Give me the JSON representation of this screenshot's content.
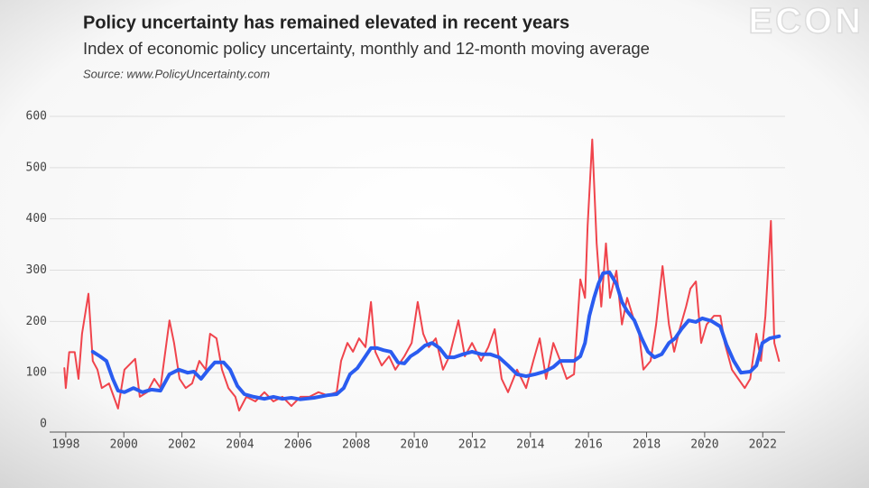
{
  "chart_data": {
    "type": "line",
    "title": "Policy uncertainty has remained elevated in recent years",
    "subtitle": "Index of economic policy uncertainty, monthly and 12-month moving average",
    "source": "Source: www.PolicyUncertainty.com",
    "watermark": "ECON",
    "xlim": [
      1997.6,
      2022.8
    ],
    "xticks": [
      1998,
      2000,
      2002,
      2004,
      2006,
      2008,
      2010,
      2012,
      2014,
      2016,
      2018,
      2020,
      2022
    ],
    "ylim": [
      0,
      600
    ],
    "yticks": [
      0,
      100,
      200,
      300,
      400,
      500,
      600
    ],
    "grid": true,
    "series": [
      {
        "color": "#f0444c",
        "x": [
          1997.95,
          1998.0,
          1998.12,
          1998.31,
          1998.44,
          1998.56,
          1998.78,
          1998.93,
          1999.09,
          1999.24,
          1999.49,
          1999.8,
          2000.02,
          2000.39,
          2000.55,
          2000.8,
          2001.05,
          2001.26,
          2001.57,
          2001.73,
          2001.92,
          2002.13,
          2002.35,
          2002.6,
          2002.82,
          2002.97,
          2003.19,
          2003.38,
          2003.6,
          2003.84,
          2003.97,
          2004.22,
          2004.53,
          2004.84,
          2005.15,
          2005.46,
          2005.77,
          2006.08,
          2006.39,
          2006.7,
          2007.01,
          2007.33,
          2007.48,
          2007.7,
          2007.89,
          2008.1,
          2008.32,
          2008.51,
          2008.66,
          2008.88,
          2009.13,
          2009.35,
          2009.66,
          2009.91,
          2010.12,
          2010.31,
          2010.5,
          2010.74,
          2010.99,
          2011.21,
          2011.52,
          2011.74,
          2011.99,
          2012.3,
          2012.55,
          2012.77,
          2013.01,
          2013.23,
          2013.54,
          2013.85,
          2014.1,
          2014.32,
          2014.54,
          2014.79,
          2015.03,
          2015.25,
          2015.5,
          2015.72,
          2015.88,
          2015.97,
          2016.13,
          2016.28,
          2016.44,
          2016.6,
          2016.74,
          2016.96,
          2017.15,
          2017.33,
          2017.52,
          2017.74,
          2017.89,
          2018.14,
          2018.33,
          2018.55,
          2018.77,
          2018.95,
          2019.14,
          2019.36,
          2019.51,
          2019.7,
          2019.88,
          2020.07,
          2020.32,
          2020.54,
          2020.69,
          2020.94,
          2021.16,
          2021.38,
          2021.57,
          2021.78,
          2021.94,
          2022.09,
          2022.28,
          2022.4,
          2022.56
        ],
        "values": [
          109,
          70,
          140,
          140,
          88,
          176,
          254,
          123,
          106,
          70,
          79,
          30,
          106,
          127,
          53,
          62,
          88,
          70,
          202,
          158,
          88,
          70,
          79,
          123,
          106,
          176,
          167,
          106,
          70,
          53,
          26,
          53,
          44,
          62,
          44,
          53,
          35,
          53,
          53,
          62,
          56,
          62,
          123,
          158,
          141,
          167,
          150,
          238,
          141,
          114,
          132,
          106,
          132,
          158,
          238,
          176,
          150,
          167,
          106,
          132,
          202,
          132,
          158,
          123,
          150,
          185,
          88,
          62,
          106,
          70,
          123,
          167,
          88,
          158,
          123,
          88,
          97,
          282,
          246,
          387,
          555,
          352,
          229,
          352,
          246,
          299,
          194,
          246,
          211,
          176,
          106,
          123,
          194,
          308,
          194,
          141,
          185,
          229,
          264,
          278,
          158,
          194,
          211,
          211,
          158,
          106,
          88,
          70,
          88,
          176,
          123,
          211,
          396,
          158,
          123
        ]
      },
      {
        "color": "#2a5cf0",
        "x": [
          1998.93,
          1999.18,
          1999.4,
          1999.62,
          1999.8,
          2000.02,
          2000.33,
          2000.64,
          2000.95,
          2001.26,
          2001.57,
          2001.89,
          2002.2,
          2002.41,
          2002.66,
          2002.91,
          2003.13,
          2003.44,
          2003.66,
          2003.91,
          2004.15,
          2004.47,
          2004.84,
          2005.15,
          2005.46,
          2005.77,
          2006.08,
          2006.55,
          2007.01,
          2007.33,
          2007.57,
          2007.79,
          2008.04,
          2008.26,
          2008.51,
          2008.72,
          2008.94,
          2009.19,
          2009.44,
          2009.66,
          2009.87,
          2010.12,
          2010.37,
          2010.62,
          2010.87,
          2011.12,
          2011.37,
          2011.68,
          2011.99,
          2012.3,
          2012.61,
          2012.92,
          2013.23,
          2013.54,
          2013.85,
          2014.16,
          2014.48,
          2014.79,
          2015.03,
          2015.25,
          2015.5,
          2015.72,
          2015.88,
          2016.03,
          2016.19,
          2016.34,
          2016.5,
          2016.72,
          2016.96,
          2017.15,
          2017.33,
          2017.58,
          2017.83,
          2018.05,
          2018.27,
          2018.52,
          2018.77,
          2018.98,
          2019.2,
          2019.45,
          2019.7,
          2019.92,
          2020.23,
          2020.54,
          2020.75,
          2021.0,
          2021.25,
          2021.57,
          2021.78,
          2021.99,
          2022.24,
          2022.56
        ],
        "values": [
          141,
          132,
          123,
          88,
          65,
          62,
          70,
          62,
          67,
          65,
          97,
          106,
          100,
          102,
          88,
          106,
          120,
          120,
          106,
          74,
          58,
          53,
          49,
          53,
          49,
          51,
          48,
          51,
          56,
          58,
          70,
          97,
          109,
          127,
          148,
          148,
          144,
          141,
          120,
          118,
          132,
          141,
          153,
          158,
          148,
          130,
          130,
          136,
          141,
          136,
          136,
          130,
          114,
          97,
          93,
          97,
          102,
          111,
          123,
          123,
          123,
          132,
          158,
          211,
          246,
          273,
          294,
          296,
          273,
          238,
          220,
          202,
          167,
          141,
          130,
          136,
          158,
          167,
          185,
          202,
          199,
          206,
          201,
          190,
          155,
          123,
          100,
          102,
          114,
          158,
          167,
          171
        ]
      }
    ]
  }
}
